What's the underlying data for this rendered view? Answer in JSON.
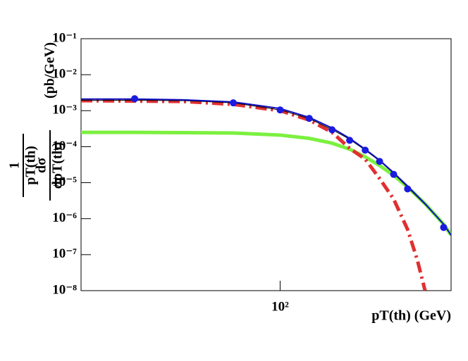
{
  "chart_data": {
    "type": "line",
    "xlabel": "pT(th) (GeV)",
    "ylabel": {
      "factor_num": "1",
      "factor_den": "pT(th)",
      "num": "dσ",
      "den": "dpT(th)",
      "unit": "(pb/GeV)"
    },
    "log_x": true,
    "log_y": true,
    "xlim": [
      15,
      510
    ],
    "ylim": [
      1e-08,
      0.1
    ],
    "xticks": [
      {
        "value": 100,
        "label": "10²"
      }
    ],
    "yticks": [
      {
        "value": 1e-08,
        "label": "10⁻⁸"
      },
      {
        "value": 1e-07,
        "label": "10⁻⁷"
      },
      {
        "value": 1e-06,
        "label": "10⁻⁶"
      },
      {
        "value": 1e-05,
        "label": "10⁻⁵"
      },
      {
        "value": 0.0001,
        "label": "10⁻⁴"
      },
      {
        "value": 0.001,
        "label": "10⁻³"
      },
      {
        "value": 0.01,
        "label": "10⁻²"
      },
      {
        "value": 0.1,
        "label": "10⁻¹"
      }
    ],
    "series": [
      {
        "type": "line",
        "color": "#7cf040",
        "width": 5,
        "dash": "none",
        "x": [
          15,
          25,
          40,
          64,
          100,
          132,
          164,
          194,
          225,
          258,
          295,
          337,
          400,
          475,
          510
        ],
        "values": [
          0.00025,
          0.00025,
          0.000245,
          0.00024,
          0.00021,
          0.00017,
          0.000125,
          8.5e-05,
          5.2e-05,
          3e-05,
          1.6e-05,
          7.5e-06,
          2.5e-06,
          7e-07,
          3.5e-07
        ]
      },
      {
        "type": "line",
        "color": "#e03030",
        "width": 5,
        "dash": "16 6 3 6",
        "x": [
          15,
          25,
          40,
          64,
          100,
          132,
          164,
          194,
          225,
          258,
          295,
          337,
          370,
          398
        ],
        "values": [
          0.0019,
          0.00185,
          0.0018,
          0.0015,
          0.001,
          0.00055,
          0.00025,
          9e-05,
          4.5e-05,
          1.3e-05,
          3.5e-06,
          5e-07,
          7e-08,
          1e-08
        ]
      },
      {
        "type": "line",
        "color": "#000000",
        "width": 1,
        "dash": "none",
        "x": [
          15,
          25,
          40,
          64,
          100,
          132,
          164,
          194,
          225,
          258,
          295,
          337,
          400,
          475,
          510
        ],
        "values": [
          0.00195,
          0.00195,
          0.0019,
          0.00165,
          0.00105,
          0.0006,
          0.0003,
          0.00016,
          8e-05,
          4e-05,
          1.8e-05,
          7.5e-06,
          2.4e-06,
          7e-07,
          3.5e-07
        ]
      },
      {
        "type": "line",
        "color": "#1010c0",
        "width": 2,
        "dash": "none",
        "x": [
          15,
          25,
          40,
          64,
          100,
          132,
          164,
          194,
          225,
          258,
          295,
          337,
          400,
          475,
          510
        ],
        "values": [
          0.0021,
          0.0021,
          0.002,
          0.00175,
          0.00115,
          0.00065,
          0.00033,
          0.00017,
          8.5e-05,
          4.2e-05,
          1.9e-05,
          8e-06,
          2.5e-06,
          7e-07,
          3.5e-07
        ]
      },
      {
        "type": "scatter",
        "color": "#1a1ae0",
        "size": 5,
        "x": [
          25,
          64,
          100,
          132,
          164,
          194,
          225,
          258,
          295,
          337,
          475
        ],
        "values": [
          0.00215,
          0.00165,
          0.00105,
          0.00061,
          0.000295,
          0.00015,
          8e-05,
          3.9e-05,
          1.7e-05,
          6.7e-06,
          5.7e-07
        ]
      }
    ]
  }
}
